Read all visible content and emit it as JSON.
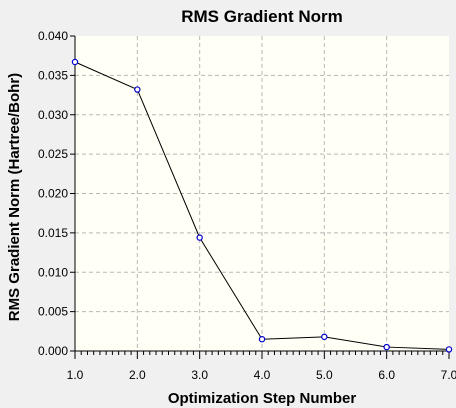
{
  "chart_data": {
    "type": "line",
    "title": "RMS Gradient Norm",
    "xlabel": "Optimization Step Number",
    "ylabel": "RMS Gradient Norm (Hartree/Bohr)",
    "x": [
      1,
      2,
      3,
      4,
      5,
      6,
      7
    ],
    "series": [
      {
        "values": [
          0.0367,
          0.0332,
          0.0144,
          0.0015,
          0.0018,
          0.0005,
          0.0002
        ]
      }
    ],
    "xlim": [
      1.0,
      7.0
    ],
    "ylim": [
      0.0,
      0.04
    ],
    "xticks": [
      "1.0",
      "2.0",
      "3.0",
      "4.0",
      "5.0",
      "6.0",
      "7.0"
    ],
    "yticks": [
      "0.000",
      "0.005",
      "0.010",
      "0.015",
      "0.020",
      "0.025",
      "0.030",
      "0.035",
      "0.040"
    ],
    "grid": true,
    "colors": {
      "plot_background": "#fffff5",
      "page_background": "#f0f0f0",
      "line": "#000000",
      "marker": "#0000cc",
      "grid": "#b8b8b8"
    }
  }
}
